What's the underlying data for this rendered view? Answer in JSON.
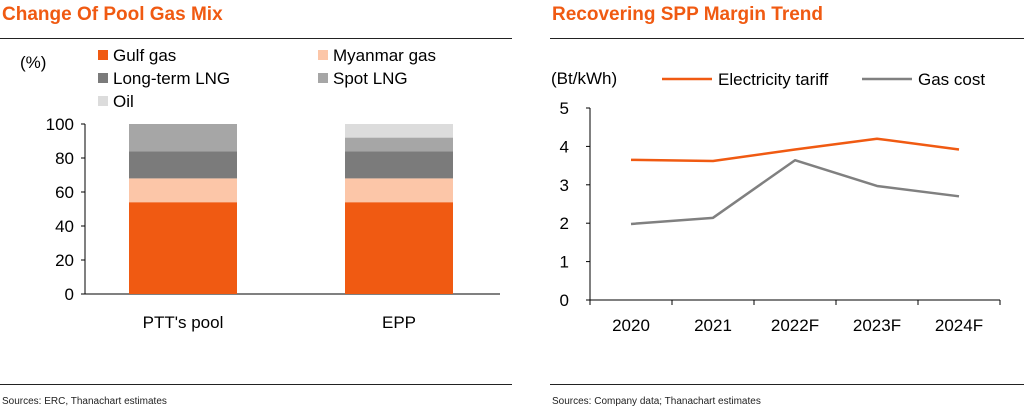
{
  "left_panel": {
    "title": "Change Of Pool Gas Mix",
    "source": "Sources: ERC, Thanachart estimates"
  },
  "right_panel": {
    "title": "Recovering SPP Margin Trend",
    "source": "Sources: Company data; Thanachart estimates"
  },
  "colors": {
    "title": "#f05a12",
    "gulf_gas": "#f05a12",
    "myanmar_gas": "#fcc6a8",
    "long_term_lng": "#7b7b7b",
    "spot_lng": "#a6a6a6",
    "oil": "#dcdcdc",
    "electricity_tariff": "#f05a12",
    "gas_cost": "#808080"
  },
  "chart_data": [
    {
      "type": "bar",
      "stacked": true,
      "ylabel": "(%)",
      "ylim": [
        0,
        100
      ],
      "yticks": [
        0,
        20,
        40,
        60,
        80,
        100
      ],
      "categories": [
        "PTT's pool",
        "EPP"
      ],
      "series": [
        {
          "name": "Gulf gas",
          "values": [
            54,
            54
          ],
          "color": "#f05a12"
        },
        {
          "name": "Myanmar gas",
          "values": [
            14,
            14
          ],
          "color": "#fcc6a8"
        },
        {
          "name": "Long-term LNG",
          "values": [
            16,
            16
          ],
          "color": "#7b7b7b"
        },
        {
          "name": "Spot LNG",
          "values": [
            16,
            8
          ],
          "color": "#a6a6a6"
        },
        {
          "name": "Oil",
          "values": [
            0,
            8
          ],
          "color": "#dcdcdc"
        }
      ],
      "legend_position": "top",
      "grid": false
    },
    {
      "type": "line",
      "ylabel": "(Bt/kWh)",
      "ylim": [
        0,
        5
      ],
      "yticks": [
        0,
        1,
        2,
        3,
        4,
        5
      ],
      "categories": [
        "2020",
        "2021",
        "2022F",
        "2023F",
        "2024F"
      ],
      "series": [
        {
          "name": "Electricity tariff",
          "values": [
            3.65,
            3.62,
            3.92,
            4.2,
            3.92
          ],
          "color": "#f05a12"
        },
        {
          "name": "Gas cost",
          "values": [
            1.98,
            2.14,
            3.64,
            2.97,
            2.7
          ],
          "color": "#808080"
        }
      ],
      "legend_position": "top",
      "grid": false
    }
  ]
}
